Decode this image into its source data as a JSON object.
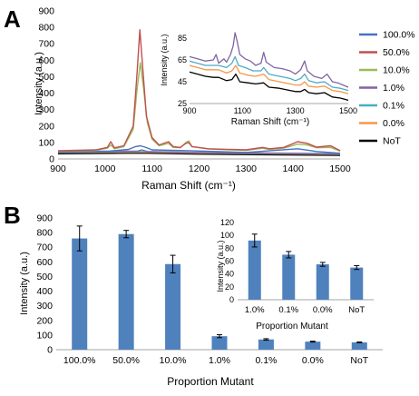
{
  "panels": {
    "a_label": "A",
    "b_label": "B"
  },
  "colors": {
    "s100": "#4472c4",
    "s50": "#c0504d",
    "s10": "#9bbb59",
    "s1": "#8064a2",
    "s01": "#4bacc6",
    "s00": "#f79646",
    "noT": "#000000",
    "bar": "#4f81bd"
  },
  "chart_data": [
    {
      "type": "line",
      "panel": "A",
      "xlabel": "Raman Shift (cm⁻¹)",
      "ylabel": "Intensity (a.u.)",
      "xlim": [
        900,
        1500
      ],
      "ylim": [
        0,
        900
      ],
      "xticks": [
        "900",
        "1000",
        "1100",
        "1200",
        "1300",
        "1400",
        "1500"
      ],
      "yticks": [
        "0",
        "100",
        "200",
        "300",
        "400",
        "500",
        "600",
        "700",
        "800",
        "900"
      ],
      "legend_position": "right",
      "series": [
        {
          "name": "100.0%",
          "points": [
            [
              900,
              45
            ],
            [
              1010,
              48
            ],
            [
              1050,
              58
            ],
            [
              1065,
              75
            ],
            [
              1075,
              80
            ],
            [
              1085,
              72
            ],
            [
              1100,
              55
            ],
            [
              1180,
              50
            ],
            [
              1300,
              40
            ],
            [
              1410,
              62
            ],
            [
              1450,
              45
            ],
            [
              1500,
              35
            ]
          ]
        },
        {
          "name": "50.0%",
          "points": [
            [
              900,
              50
            ],
            [
              980,
              55
            ],
            [
              1005,
              70
            ],
            [
              1012,
              105
            ],
            [
              1020,
              68
            ],
            [
              1040,
              80
            ],
            [
              1060,
              200
            ],
            [
              1068,
              520
            ],
            [
              1074,
              785
            ],
            [
              1080,
              560
            ],
            [
              1088,
              260
            ],
            [
              1100,
              130
            ],
            [
              1115,
              85
            ],
            [
              1135,
              105
            ],
            [
              1145,
              75
            ],
            [
              1160,
              70
            ],
            [
              1172,
              95
            ],
            [
              1178,
              100
            ],
            [
              1185,
              75
            ],
            [
              1220,
              62
            ],
            [
              1300,
              55
            ],
            [
              1335,
              70
            ],
            [
              1350,
              62
            ],
            [
              1380,
              70
            ],
            [
              1410,
              105
            ],
            [
              1430,
              95
            ],
            [
              1450,
              72
            ],
            [
              1480,
              80
            ],
            [
              1500,
              50
            ]
          ]
        },
        {
          "name": "10.0%",
          "points": [
            [
              900,
              48
            ],
            [
              980,
              52
            ],
            [
              1005,
              65
            ],
            [
              1012,
              85
            ],
            [
              1020,
              62
            ],
            [
              1040,
              75
            ],
            [
              1060,
              180
            ],
            [
              1068,
              420
            ],
            [
              1075,
              585
            ],
            [
              1082,
              430
            ],
            [
              1090,
              220
            ],
            [
              1100,
              120
            ],
            [
              1115,
              80
            ],
            [
              1135,
              95
            ],
            [
              1145,
              70
            ],
            [
              1160,
              68
            ],
            [
              1172,
              100
            ],
            [
              1178,
              110
            ],
            [
              1185,
              75
            ],
            [
              1220,
              60
            ],
            [
              1300,
              52
            ],
            [
              1335,
              65
            ],
            [
              1350,
              58
            ],
            [
              1380,
              65
            ],
            [
              1410,
              90
            ],
            [
              1430,
              85
            ],
            [
              1450,
              68
            ],
            [
              1480,
              70
            ],
            [
              1500,
              48
            ]
          ]
        },
        {
          "name": "1.0%",
          "points": [
            [
              900,
              42
            ],
            [
              1070,
              48
            ],
            [
              1078,
              55
            ],
            [
              1090,
              45
            ],
            [
              1200,
              40
            ],
            [
              1500,
              32
            ]
          ]
        },
        {
          "name": "0.1%",
          "points": [
            [
              900,
              40
            ],
            [
              1075,
              45
            ],
            [
              1200,
              38
            ],
            [
              1500,
              30
            ]
          ]
        },
        {
          "name": "0.0%",
          "points": [
            [
              900,
              38
            ],
            [
              1075,
              42
            ],
            [
              1200,
              36
            ],
            [
              1500,
              28
            ]
          ]
        },
        {
          "name": "NoT",
          "points": [
            [
              900,
              32
            ],
            [
              1075,
              36
            ],
            [
              1200,
              30
            ],
            [
              1500,
              22
            ]
          ]
        }
      ],
      "inset": {
        "xlabel": "Raman Shift (cm⁻¹)",
        "ylabel": "Intensity (a.u.)",
        "xlim": [
          900,
          1500
        ],
        "ylim": [
          25,
          105
        ],
        "xticks": [
          "900",
          "1100",
          "1300",
          "1500"
        ],
        "yticks": [
          "25",
          "45",
          "65",
          "85"
        ],
        "series": [
          {
            "name": "1.0%",
            "points": [
              [
                900,
                68
              ],
              [
                930,
                66
              ],
              [
                960,
                64
              ],
              [
                990,
                65
              ],
              [
                1000,
                70
              ],
              [
                1010,
                62
              ],
              [
                1030,
                66
              ],
              [
                1040,
                63
              ],
              [
                1055,
                70
              ],
              [
                1065,
                78
              ],
              [
                1072,
                90
              ],
              [
                1080,
                82
              ],
              [
                1090,
                70
              ],
              [
                1110,
                66
              ],
              [
                1130,
                64
              ],
              [
                1150,
                60
              ],
              [
                1170,
                62
              ],
              [
                1180,
                72
              ],
              [
                1190,
                63
              ],
              [
                1220,
                58
              ],
              [
                1250,
                57
              ],
              [
                1280,
                55
              ],
              [
                1300,
                52
              ],
              [
                1320,
                56
              ],
              [
                1335,
                64
              ],
              [
                1345,
                55
              ],
              [
                1370,
                50
              ],
              [
                1400,
                48
              ],
              [
                1420,
                52
              ],
              [
                1440,
                45
              ],
              [
                1460,
                44
              ],
              [
                1480,
                42
              ],
              [
                1500,
                40
              ]
            ]
          },
          {
            "name": "0.1%",
            "points": [
              [
                900,
                64
              ],
              [
                930,
                62
              ],
              [
                960,
                60
              ],
              [
                990,
                60
              ],
              [
                1010,
                60
              ],
              [
                1040,
                58
              ],
              [
                1060,
                62
              ],
              [
                1072,
                68
              ],
              [
                1085,
                60
              ],
              [
                1110,
                58
              ],
              [
                1140,
                55
              ],
              [
                1170,
                55
              ],
              [
                1180,
                58
              ],
              [
                1200,
                52
              ],
              [
                1240,
                50
              ],
              [
                1280,
                48
              ],
              [
                1300,
                46
              ],
              [
                1320,
                48
              ],
              [
                1335,
                52
              ],
              [
                1350,
                46
              ],
              [
                1380,
                44
              ],
              [
                1410,
                45
              ],
              [
                1440,
                40
              ],
              [
                1470,
                39
              ],
              [
                1500,
                37
              ]
            ]
          },
          {
            "name": "0.0%",
            "points": [
              [
                900,
                60
              ],
              [
                930,
                58
              ],
              [
                960,
                56
              ],
              [
                990,
                56
              ],
              [
                1010,
                56
              ],
              [
                1040,
                53
              ],
              [
                1060,
                55
              ],
              [
                1075,
                60
              ],
              [
                1090,
                53
              ],
              [
                1120,
                51
              ],
              [
                1150,
                50
              ],
              [
                1180,
                52
              ],
              [
                1200,
                47
              ],
              [
                1240,
                45
              ],
              [
                1280,
                43
              ],
              [
                1300,
                42
              ],
              [
                1320,
                42
              ],
              [
                1335,
                45
              ],
              [
                1350,
                41
              ],
              [
                1380,
                40
              ],
              [
                1410,
                41
              ],
              [
                1440,
                37
              ],
              [
                1470,
                36
              ],
              [
                1500,
                34
              ]
            ]
          },
          {
            "name": "NoT",
            "points": [
              [
                900,
                54
              ],
              [
                930,
                52
              ],
              [
                960,
                50
              ],
              [
                990,
                49
              ],
              [
                1010,
                49
              ],
              [
                1040,
                46
              ],
              [
                1060,
                47
              ],
              [
                1075,
                52
              ],
              [
                1090,
                45
              ],
              [
                1120,
                44
              ],
              [
                1150,
                43
              ],
              [
                1180,
                44
              ],
              [
                1200,
                40
              ],
              [
                1240,
                39
              ],
              [
                1280,
                37
              ],
              [
                1300,
                36
              ],
              [
                1320,
                36
              ],
              [
                1335,
                38
              ],
              [
                1350,
                35
              ],
              [
                1380,
                34
              ],
              [
                1410,
                35
              ],
              [
                1440,
                31
              ],
              [
                1470,
                30
              ],
              [
                1500,
                28
              ]
            ]
          }
        ]
      }
    },
    {
      "type": "bar",
      "panel": "B",
      "xlabel": "Proportion Mutant",
      "ylabel": "Intensity (a.u.)",
      "ylim": [
        0,
        900
      ],
      "yticks": [
        "0",
        "100",
        "200",
        "300",
        "400",
        "500",
        "600",
        "700",
        "800",
        "900"
      ],
      "categories": [
        "100.0%",
        "50.0%",
        "10.0%",
        "1.0%",
        "0.1%",
        "0.0%",
        "NoT"
      ],
      "values": [
        760,
        790,
        585,
        92,
        70,
        55,
        50
      ],
      "errors": [
        85,
        25,
        60,
        10,
        5,
        3,
        3
      ],
      "inset": {
        "xlabel": "Proportion Mutant",
        "ylabel": "Intensity (a.u.)",
        "ylim": [
          0,
          120
        ],
        "yticks": [
          "0",
          "20",
          "40",
          "60",
          "80",
          "100",
          "120"
        ],
        "categories": [
          "1.0%",
          "0.1%",
          "0.0%",
          "NoT"
        ],
        "values": [
          92,
          70,
          55,
          50
        ],
        "errors": [
          10,
          5,
          3,
          3
        ]
      }
    }
  ]
}
